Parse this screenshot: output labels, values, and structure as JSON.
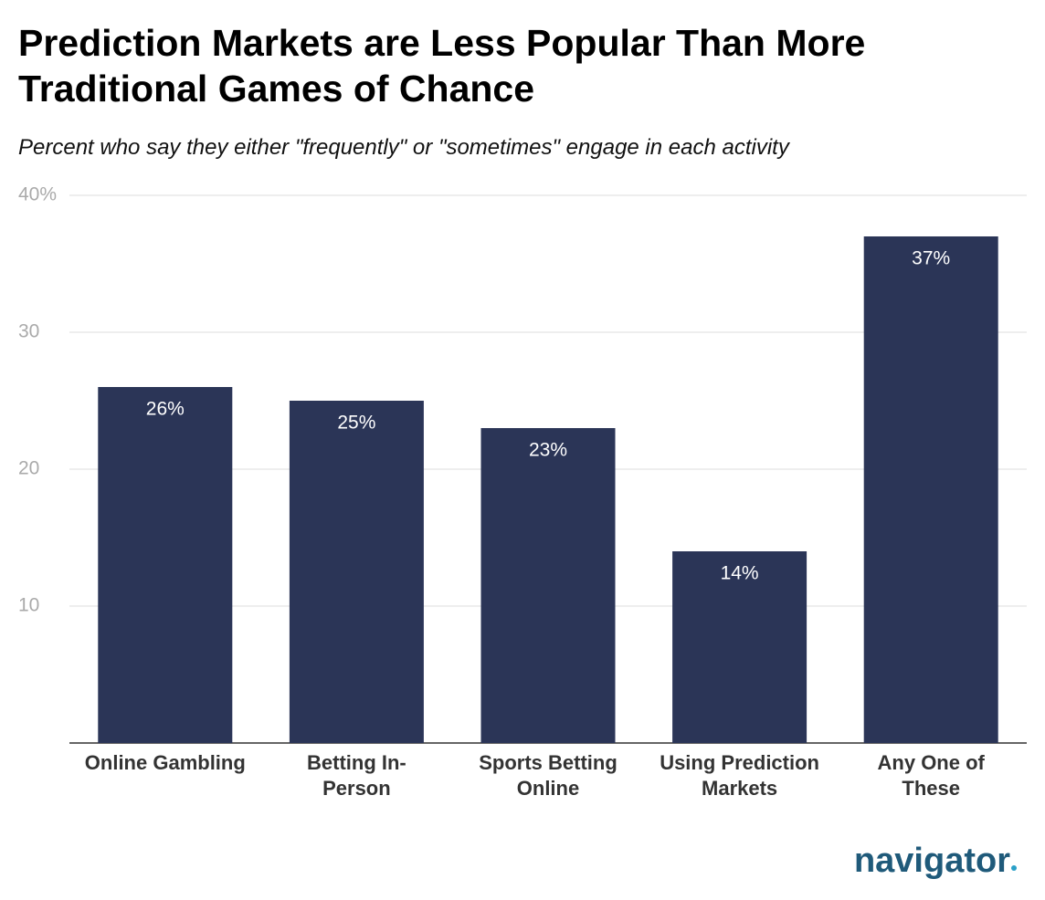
{
  "chart_data": {
    "type": "bar",
    "title": "Prediction Markets are Less Popular Than More Traditional Games of Chance",
    "subtitle": "Percent who say they either \"frequently\" or \"sometimes\" engage in each activity",
    "categories": [
      "Online Gambling",
      "Betting In-\nPerson",
      "Sports Betting\nOnline",
      "Using Prediction\nMarkets",
      "Any One of\nThese"
    ],
    "values": [
      26,
      25,
      23,
      14,
      37
    ],
    "value_labels": [
      "26%",
      "25%",
      "23%",
      "14%",
      "37%"
    ],
    "color": "#2b3557",
    "ylim": [
      0,
      40
    ],
    "yticks": [
      10,
      20,
      30,
      {
        "value": 40,
        "label": "40%"
      }
    ],
    "grid": true,
    "logo": "navigator"
  }
}
